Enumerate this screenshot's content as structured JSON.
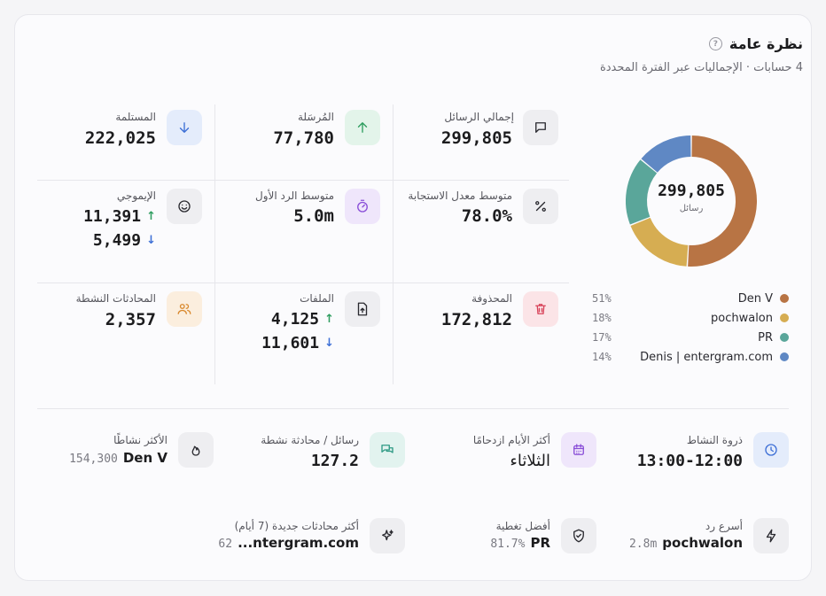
{
  "header": {
    "title": "نظرة عامة",
    "help_icon": "?",
    "subtitle": "4 حسابات · الإجماليات عبر الفترة المحددة"
  },
  "stats": {
    "total": {
      "label": "إجمالي الرسائل",
      "value": "299,805",
      "icon": "message-icon"
    },
    "sent": {
      "label": "المُرسَلة",
      "value": "77,780",
      "icon": "arrow-up-icon"
    },
    "received": {
      "label": "المستلمة",
      "value": "222,025",
      "icon": "arrow-down-icon"
    },
    "response_rate": {
      "label": "متوسط معدل الاستجابة",
      "value": "78.0%",
      "icon": "percent-icon"
    },
    "first_reply": {
      "label": "متوسط الرد الأول",
      "value": "5.0m",
      "icon": "timer-icon"
    },
    "emoji": {
      "label": "الإيموجي",
      "value_up": "11,391",
      "value_down": "5,499",
      "icon": "smile-icon"
    },
    "deleted": {
      "label": "المحذوفة",
      "value": "172,812",
      "icon": "trash-icon"
    },
    "files": {
      "label": "الملفات",
      "value_up": "4,125",
      "value_down": "11,601",
      "icon": "file-upload-icon"
    },
    "active_chats": {
      "label": "المحادثات النشطة",
      "value": "2,357",
      "icon": "users-icon"
    }
  },
  "donut": {
    "total": "299,805",
    "unit": "رسائل",
    "segments": [
      {
        "name": "Den V",
        "pct": 51,
        "pct_label": "51%",
        "color": "#b87444"
      },
      {
        "name": "pochwalon",
        "pct": 18,
        "pct_label": "18%",
        "color": "#d6ad52"
      },
      {
        "name": "PR",
        "pct": 17,
        "pct_label": "17%",
        "color": "#5aa69a"
      },
      {
        "name": "Denis | entergram.com",
        "pct": 14,
        "pct_label": "14%",
        "color": "#5f88c4"
      }
    ]
  },
  "insights": {
    "peak": {
      "label": "ذروة النشاط",
      "value": "13:00-12:00",
      "icon": "clock-icon"
    },
    "busiest_day": {
      "label": "أكثر الأيام ازدحامًا",
      "value": "الثلاثاء",
      "icon": "calendar-icon"
    },
    "per_chat": {
      "label": "رسائل / محادثة نشطة",
      "value": "127.2",
      "icon": "chat-bubbles-icon"
    },
    "most_active": {
      "label": "الأكثر نشاطًا",
      "name": "Den V",
      "value": "154,300",
      "icon": "flame-icon"
    },
    "fastest": {
      "label": "أسرع رد",
      "name": "pochwalon",
      "value": "2.8m",
      "icon": "zap-icon"
    },
    "best_coverage": {
      "label": "أفضل تغطية",
      "name": "PR",
      "value": "81.7%",
      "icon": "shield-icon"
    },
    "new_chats": {
      "label": "أكثر محادثات جديدة (7 أيام)",
      "name": "...ntergram.com",
      "value": "62",
      "icon": "sparkles-icon"
    }
  }
}
